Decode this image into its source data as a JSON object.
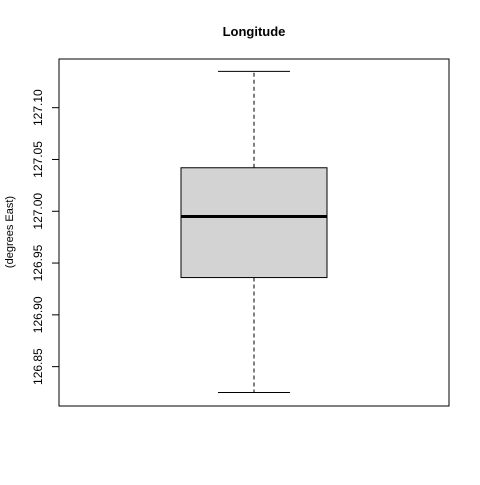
{
  "chart_data": {
    "type": "boxplot",
    "title": "Longitude",
    "xlabel": "",
    "ylabel": "(degrees East)",
    "ylim": [
      126.812,
      127.147
    ],
    "yticks": [
      126.85,
      126.9,
      126.95,
      127.0,
      127.05,
      127.1
    ],
    "ytick_labels": [
      "126.85",
      "126.90",
      "126.95",
      "127.00",
      "127.05",
      "127.10"
    ],
    "box": {
      "min": 126.825,
      "q1": 126.936,
      "median": 126.995,
      "q3": 127.042,
      "max": 127.135
    },
    "colors": {
      "box_fill": "#d3d3d3",
      "stroke": "#000000"
    },
    "grid": false
  }
}
